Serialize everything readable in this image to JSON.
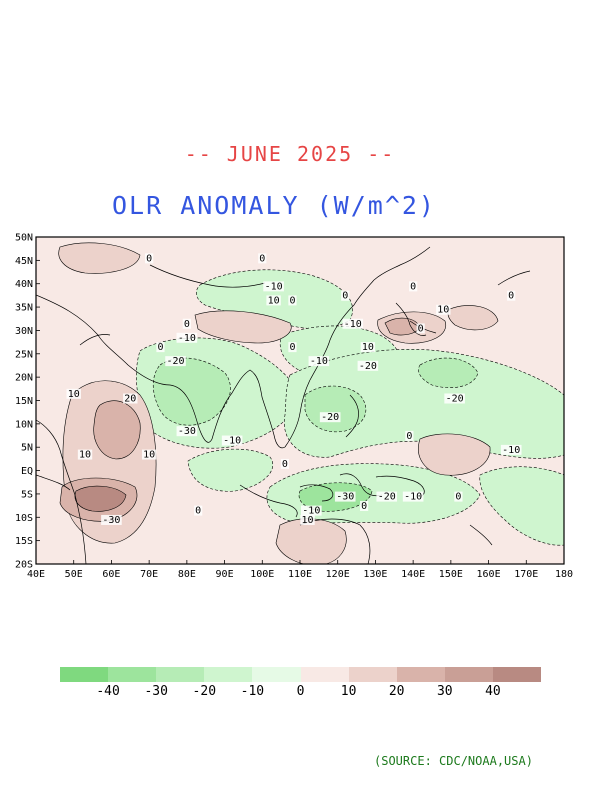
{
  "header": {
    "date_title": "-- JUNE 2025 --",
    "main_title": "OLR ANOMALY (W/m^2)"
  },
  "map": {
    "region": "Asia-Pacific / Indian Ocean",
    "lat_labels": [
      "50N",
      "45N",
      "40N",
      "35N",
      "30N",
      "25N",
      "20N",
      "15N",
      "10N",
      "5N",
      "EQ",
      "5S",
      "10S",
      "15S",
      "20S"
    ],
    "lon_labels": [
      "40E",
      "50E",
      "60E",
      "70E",
      "80E",
      "90E",
      "100E",
      "110E",
      "120E",
      "130E",
      "140E",
      "150E",
      "160E",
      "170E",
      "180"
    ],
    "lat_range": [
      -20,
      50
    ],
    "lon_range": [
      40,
      180
    ],
    "contour_interval": 10,
    "contour_labels": [
      {
        "text": "0",
        "lon": 73,
        "lat": 26
      },
      {
        "text": "-20",
        "lon": 77,
        "lat": 23
      },
      {
        "text": "-10",
        "lon": 80,
        "lat": 28
      },
      {
        "text": "0",
        "lon": 80,
        "lat": 31
      },
      {
        "text": "10",
        "lon": 50,
        "lat": 16
      },
      {
        "text": "20",
        "lon": 65,
        "lat": 15
      },
      {
        "text": "-30",
        "lon": 80,
        "lat": 8
      },
      {
        "text": "10",
        "lon": 53,
        "lat": 3
      },
      {
        "text": "10",
        "lon": 70,
        "lat": 3
      },
      {
        "text": "-30",
        "lon": 60,
        "lat": -11
      },
      {
        "text": "0",
        "lon": 83,
        "lat": -9
      },
      {
        "text": "-10",
        "lon": 92,
        "lat": 6
      },
      {
        "text": "-10",
        "lon": 103,
        "lat": 39
      },
      {
        "text": "10",
        "lon": 103,
        "lat": 36
      },
      {
        "text": "0",
        "lon": 108,
        "lat": 36
      },
      {
        "text": "0",
        "lon": 100,
        "lat": 45
      },
      {
        "text": "0",
        "lon": 70,
        "lat": 45
      },
      {
        "text": "0",
        "lon": 108,
        "lat": 26
      },
      {
        "text": "-10",
        "lon": 115,
        "lat": 23
      },
      {
        "text": "-10",
        "lon": 124,
        "lat": 31
      },
      {
        "text": "10",
        "lon": 128,
        "lat": 26
      },
      {
        "text": "-20",
        "lon": 128,
        "lat": 22
      },
      {
        "text": "0",
        "lon": 122,
        "lat": 37
      },
      {
        "text": "0",
        "lon": 140,
        "lat": 39
      },
      {
        "text": "10",
        "lon": 148,
        "lat": 34
      },
      {
        "text": "0",
        "lon": 142,
        "lat": 30
      },
      {
        "text": "0",
        "lon": 166,
        "lat": 37
      },
      {
        "text": "-20",
        "lon": 118,
        "lat": 11
      },
      {
        "text": "-20",
        "lon": 151,
        "lat": 15
      },
      {
        "text": "0",
        "lon": 139,
        "lat": 7
      },
      {
        "text": "-10",
        "lon": 166,
        "lat": 4
      },
      {
        "text": "0",
        "lon": 106,
        "lat": 1
      },
      {
        "text": "0",
        "lon": 127,
        "lat": -8
      },
      {
        "text": "-30",
        "lon": 122,
        "lat": -6
      },
      {
        "text": "-20",
        "lon": 133,
        "lat": -6
      },
      {
        "text": "-10",
        "lon": 140,
        "lat": -6
      },
      {
        "text": "0",
        "lon": 152,
        "lat": -6
      },
      {
        "text": "-10",
        "lon": 113,
        "lat": -9
      },
      {
        "text": "10",
        "lon": 112,
        "lat": -11
      }
    ]
  },
  "colorbar": {
    "labels": [
      "-40",
      "-30",
      "-20",
      "-10",
      "0",
      "10",
      "20",
      "30",
      "40"
    ],
    "colors": [
      "#7fd97f",
      "#9de49d",
      "#b6ecb6",
      "#cff5cf",
      "#e6fae6",
      "#f8e9e5",
      "#ecd2cb",
      "#d9b3aa",
      "#c99f96",
      "#b88a82"
    ]
  },
  "source": "(SOURCE: CDC/NOAA,USA)"
}
